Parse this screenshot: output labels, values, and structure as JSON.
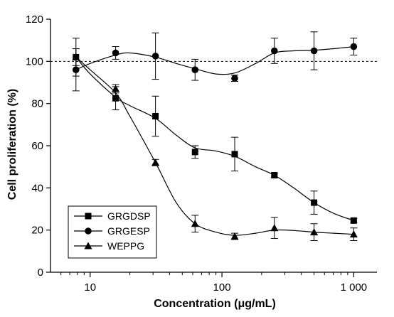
{
  "chart_data": {
    "type": "line",
    "title": "",
    "xlabel": "Concentration (μg/mL)",
    "ylabel": "Cell proliferation (%)",
    "x_scale": "log",
    "xlim": [
      5,
      1500
    ],
    "ylim": [
      0,
      120
    ],
    "x_tick_labels": [
      "10",
      "100",
      "1 000"
    ],
    "y_tick_labels": [
      "0",
      "20",
      "40",
      "60",
      "80",
      "100",
      "120"
    ],
    "reference_line": {
      "y": 100,
      "style": "dashed"
    },
    "legend_position": "bottom-left",
    "grid": false,
    "series": [
      {
        "name": "GRGDSP",
        "marker": "square",
        "points": [
          {
            "x": 7.8,
            "y": 102,
            "err": 9
          },
          {
            "x": 15.6,
            "y": 82.5,
            "err": 5.5
          },
          {
            "x": 31.3,
            "y": 74,
            "err": 9.5
          },
          {
            "x": 62.5,
            "y": 57,
            "err": 3
          },
          {
            "x": 125,
            "y": 56,
            "err": 8
          },
          {
            "x": 250,
            "y": 46,
            "err": 1
          },
          {
            "x": 500,
            "y": 33,
            "err": 5.5
          },
          {
            "x": 1000,
            "y": 24.5,
            "err": 1
          }
        ],
        "curve": [
          [
            7.8,
            102
          ],
          [
            10,
            94
          ],
          [
            15.6,
            83
          ],
          [
            20,
            79
          ],
          [
            31.3,
            73
          ],
          [
            45,
            65
          ],
          [
            62.5,
            59
          ],
          [
            90,
            57.5
          ],
          [
            125,
            55
          ],
          [
            180,
            50
          ],
          [
            250,
            46
          ],
          [
            350,
            40
          ],
          [
            500,
            33
          ],
          [
            700,
            28
          ],
          [
            1000,
            24.5
          ]
        ]
      },
      {
        "name": "GRGESP",
        "marker": "circle",
        "points": [
          {
            "x": 7.8,
            "y": 96,
            "err": 10
          },
          {
            "x": 15.6,
            "y": 104,
            "err": 3
          },
          {
            "x": 31.3,
            "y": 102.5,
            "err": 11
          },
          {
            "x": 62.5,
            "y": 96,
            "err": 5
          },
          {
            "x": 125,
            "y": 92,
            "err": 1.5
          },
          {
            "x": 250,
            "y": 105,
            "err": 6
          },
          {
            "x": 500,
            "y": 105,
            "err": 9
          },
          {
            "x": 1000,
            "y": 107,
            "err": 4
          }
        ],
        "curve": [
          [
            7.8,
            96
          ],
          [
            10,
            99
          ],
          [
            15.6,
            103
          ],
          [
            20,
            104
          ],
          [
            31.3,
            102
          ],
          [
            45,
            99
          ],
          [
            62.5,
            96.5
          ],
          [
            90,
            94
          ],
          [
            125,
            94.5
          ],
          [
            180,
            99
          ],
          [
            250,
            104
          ],
          [
            350,
            105
          ],
          [
            500,
            105.3
          ],
          [
            700,
            106
          ],
          [
            1000,
            107
          ]
        ]
      },
      {
        "name": "WEPPG",
        "marker": "triangle",
        "points": [
          {
            "x": 7.8,
            "y": 102,
            "err": 4
          },
          {
            "x": 15.6,
            "y": 87,
            "err": 2
          },
          {
            "x": 31.3,
            "y": 52,
            "err": 1.5
          },
          {
            "x": 62.5,
            "y": 23,
            "err": 4
          },
          {
            "x": 125,
            "y": 17,
            "err": 1.5
          },
          {
            "x": 250,
            "y": 21,
            "err": 5
          },
          {
            "x": 500,
            "y": 19,
            "err": 4
          },
          {
            "x": 1000,
            "y": 18,
            "err": 3
          }
        ],
        "curve": [
          [
            7.8,
            102
          ],
          [
            10,
            96
          ],
          [
            15.6,
            85
          ],
          [
            20,
            74
          ],
          [
            31.3,
            52
          ],
          [
            45,
            33
          ],
          [
            62.5,
            23
          ],
          [
            90,
            19
          ],
          [
            125,
            17.5
          ],
          [
            180,
            18.5
          ],
          [
            250,
            20
          ],
          [
            350,
            19.8
          ],
          [
            500,
            19
          ],
          [
            700,
            18.5
          ],
          [
            1000,
            18
          ]
        ]
      }
    ]
  }
}
